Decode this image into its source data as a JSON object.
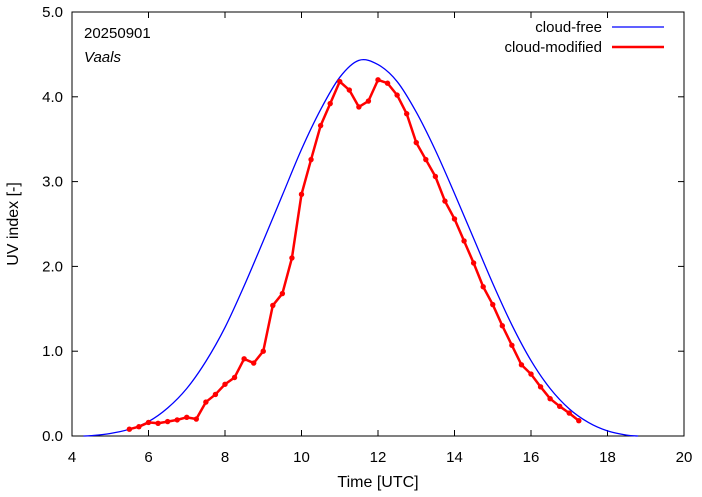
{
  "chart_data": {
    "type": "line",
    "title": "",
    "xlabel": "Time  [UTC]",
    "ylabel": "UV index  [-]",
    "xlim": [
      4,
      20
    ],
    "ylim": [
      0.0,
      5.0
    ],
    "x_ticks": [
      4,
      6,
      8,
      10,
      12,
      14,
      16,
      18,
      20
    ],
    "y_ticks": [
      0.0,
      1.0,
      2.0,
      3.0,
      4.0,
      5.0
    ],
    "x_tick_labels": [
      "4",
      "6",
      "8",
      "10",
      "12",
      "14",
      "16",
      "18",
      "20"
    ],
    "y_tick_labels": [
      "0.0",
      "1.0",
      "2.0",
      "3.0",
      "4.0",
      "5.0"
    ],
    "grid": false,
    "legend_position": "top-right",
    "annotations": [
      "20250901",
      "Vaals"
    ],
    "series": [
      {
        "name": "cloud-free",
        "color": "#0000ff",
        "style": "line",
        "peak_x": 11.55,
        "peak_y": 4.43,
        "x": [
          4.3,
          4.5,
          5.0,
          5.5,
          6.0,
          6.5,
          7.0,
          7.5,
          8.0,
          8.5,
          9.0,
          9.5,
          10.0,
          10.5,
          11.0,
          11.5,
          12.0,
          12.5,
          13.0,
          13.5,
          14.0,
          14.5,
          15.0,
          15.5,
          16.0,
          16.5,
          17.0,
          17.5,
          18.0,
          18.5,
          18.8
        ],
        "y": [
          0.0,
          0.004,
          0.03,
          0.08,
          0.17,
          0.33,
          0.56,
          0.88,
          1.28,
          1.77,
          2.3,
          2.84,
          3.38,
          3.85,
          4.23,
          4.43,
          4.38,
          4.18,
          3.82,
          3.37,
          2.86,
          2.33,
          1.8,
          1.31,
          0.89,
          0.56,
          0.32,
          0.16,
          0.06,
          0.01,
          0.0
        ]
      },
      {
        "name": "cloud-modified",
        "color": "#ff0000",
        "style": "line-markers",
        "x": [
          5.5,
          5.75,
          6.0,
          6.25,
          6.5,
          6.75,
          7.0,
          7.25,
          7.5,
          7.75,
          8.0,
          8.25,
          8.5,
          8.75,
          9.0,
          9.25,
          9.5,
          9.75,
          10.0,
          10.25,
          10.5,
          10.75,
          11.0,
          11.25,
          11.5,
          11.75,
          12.0,
          12.25,
          12.5,
          12.75,
          13.0,
          13.25,
          13.5,
          13.75,
          14.0,
          14.25,
          14.5,
          14.75,
          15.0,
          15.25,
          15.5,
          15.75,
          16.0,
          16.25,
          16.5,
          16.75,
          17.0,
          17.25
        ],
        "y": [
          0.08,
          0.11,
          0.16,
          0.15,
          0.17,
          0.19,
          0.22,
          0.2,
          0.4,
          0.49,
          0.61,
          0.69,
          0.91,
          0.86,
          1.0,
          1.54,
          1.68,
          2.1,
          2.85,
          3.26,
          3.66,
          3.92,
          4.18,
          4.08,
          3.88,
          3.95,
          4.2,
          4.16,
          4.02,
          3.8,
          3.46,
          3.26,
          3.06,
          2.77,
          2.56,
          2.3,
          2.04,
          1.76,
          1.55,
          1.3,
          1.07,
          0.84,
          0.73,
          0.58,
          0.44,
          0.35,
          0.27,
          0.18
        ]
      }
    ]
  }
}
